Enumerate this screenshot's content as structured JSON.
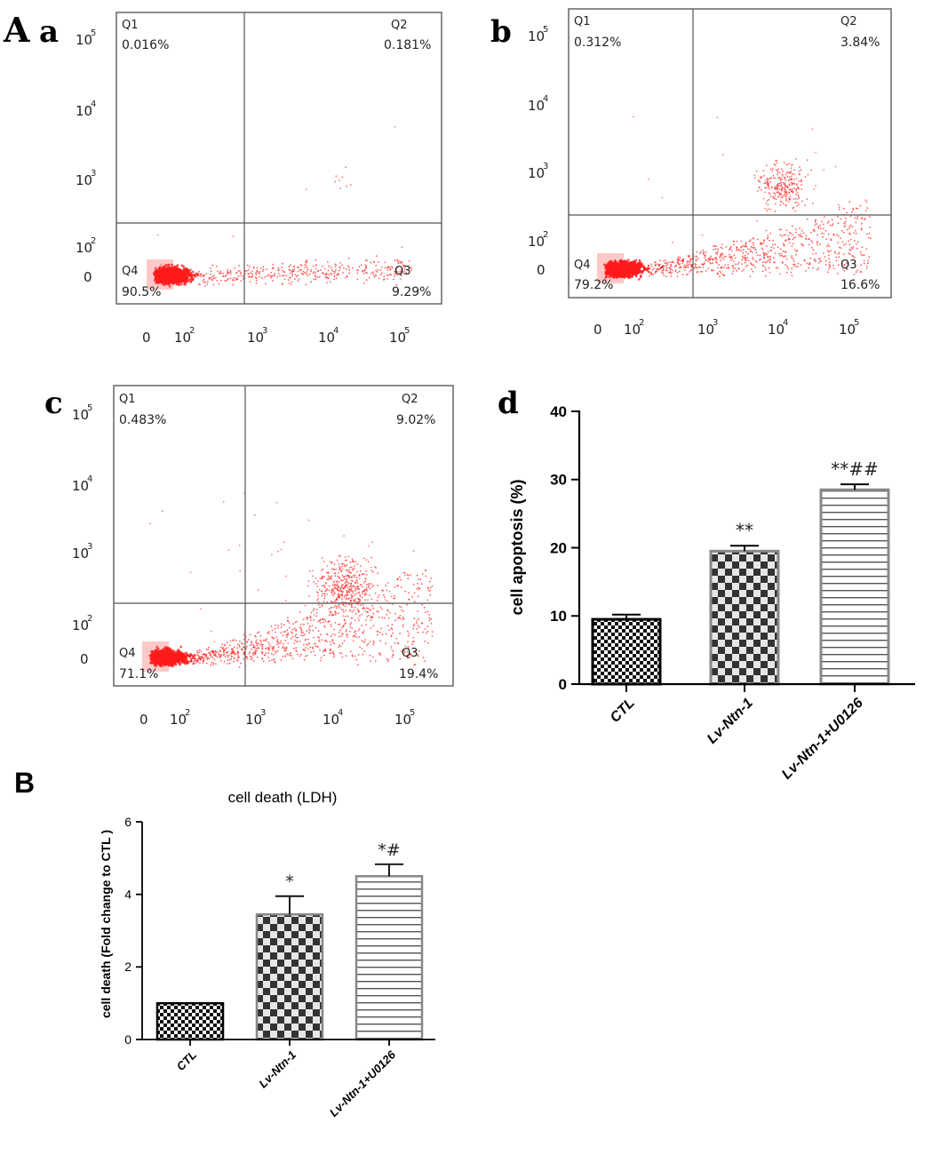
{
  "panel_labels": {
    "A": "A",
    "a": "a",
    "b": "b",
    "c": "c",
    "d": "d",
    "B": "B"
  },
  "colors": {
    "dots": "#ff2a2a",
    "dense": "#ff1a1a",
    "corner": "#ffc8c8",
    "axis": "#000000",
    "gate": "#555555"
  },
  "flow_plots": [
    {
      "panel": "a",
      "q_labels": [
        "Q1",
        "Q2",
        "Q3",
        "Q4"
      ],
      "quadrants": {
        "Q1": "0.016%",
        "Q2": "0.181%",
        "Q3": "9.29%",
        "Q4": "90.5%"
      },
      "y_ticks": [
        {
          "base": "10",
          "exp": "5"
        },
        {
          "base": "10",
          "exp": "4"
        },
        {
          "base": "10",
          "exp": "3"
        },
        {
          "base": "10",
          "exp": "2"
        },
        {
          "base": "0",
          "exp": ""
        }
      ],
      "x_ticks": [
        {
          "base": "0",
          "exp": ""
        },
        {
          "base": "10",
          "exp": "2"
        },
        {
          "base": "10",
          "exp": "3"
        },
        {
          "base": "10",
          "exp": "4"
        },
        {
          "base": "10",
          "exp": "5"
        }
      ]
    },
    {
      "panel": "b",
      "q_labels": [
        "Q1",
        "Q2",
        "Q3",
        "Q4"
      ],
      "quadrants": {
        "Q1": "0.312%",
        "Q2": "3.84%",
        "Q3": "16.6%",
        "Q4": "79.2%"
      },
      "y_ticks": [
        {
          "base": "10",
          "exp": "5"
        },
        {
          "base": "10",
          "exp": "4"
        },
        {
          "base": "10",
          "exp": "3"
        },
        {
          "base": "10",
          "exp": "2"
        },
        {
          "base": "0",
          "exp": ""
        }
      ],
      "x_ticks": [
        {
          "base": "0",
          "exp": ""
        },
        {
          "base": "10",
          "exp": "2"
        },
        {
          "base": "10",
          "exp": "3"
        },
        {
          "base": "10",
          "exp": "4"
        },
        {
          "base": "10",
          "exp": "5"
        }
      ]
    },
    {
      "panel": "c",
      "q_labels": [
        "Q1",
        "Q2",
        "Q3",
        "Q4"
      ],
      "quadrants": {
        "Q1": "0.483%",
        "Q2": "9.02%",
        "Q3": "19.4%",
        "Q4": "71.1%"
      },
      "y_ticks": [
        {
          "base": "10",
          "exp": "5"
        },
        {
          "base": "10",
          "exp": "4"
        },
        {
          "base": "10",
          "exp": "3"
        },
        {
          "base": "10",
          "exp": "2"
        },
        {
          "base": "0",
          "exp": ""
        }
      ],
      "x_ticks": [
        {
          "base": "0",
          "exp": ""
        },
        {
          "base": "10",
          "exp": "2"
        },
        {
          "base": "10",
          "exp": "3"
        },
        {
          "base": "10",
          "exp": "4"
        },
        {
          "base": "10",
          "exp": "5"
        }
      ]
    }
  ],
  "chart_data": [
    {
      "type": "bar",
      "panel": "d",
      "title": "",
      "categories": [
        "CTL",
        "Lv-Ntn-1",
        "Lv-Ntn-1+U0126"
      ],
      "values": [
        9.5,
        19.5,
        28.5
      ],
      "errors": [
        0.7,
        0.8,
        0.8
      ],
      "annotations": [
        "",
        "**",
        "**##"
      ],
      "patterns": [
        "checker-small",
        "checker-big",
        "hstripes"
      ],
      "xlabel": "",
      "ylabel": "cell apoptosis (%)",
      "ylim": [
        0,
        40
      ],
      "yticks": [
        0,
        10,
        20,
        30,
        40
      ]
    },
    {
      "type": "bar",
      "panel": "B",
      "title": "cell death (LDH)",
      "categories": [
        "CTL",
        "Lv-Ntn-1",
        "Lv-Ntn-1+U0126"
      ],
      "values": [
        1.0,
        3.45,
        4.5
      ],
      "errors": [
        0.0,
        0.5,
        0.33
      ],
      "annotations": [
        "",
        "*",
        "*#"
      ],
      "patterns": [
        "checker-small",
        "checker-big",
        "hstripes"
      ],
      "xlabel": "",
      "ylabel": "cell death  (Fold change to CTL )",
      "ylim": [
        0,
        6
      ],
      "yticks": [
        0,
        2,
        4,
        6
      ]
    }
  ]
}
